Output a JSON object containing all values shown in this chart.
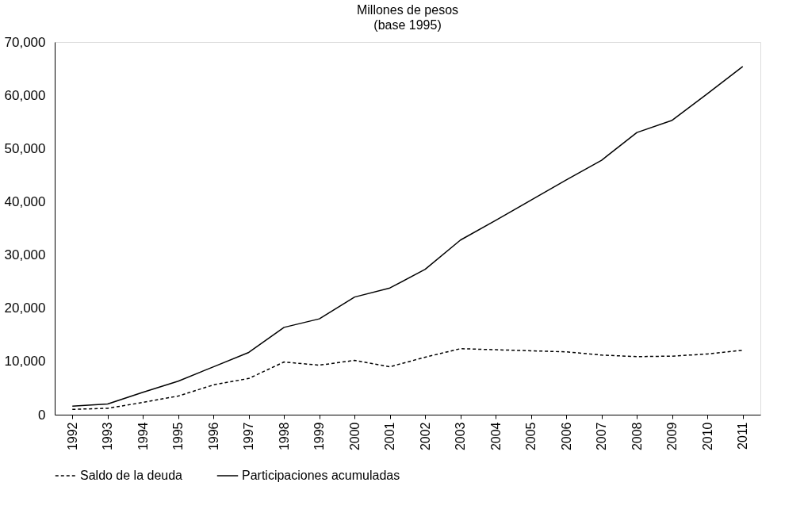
{
  "chart_data": {
    "type": "line",
    "title": "Millones de pesos",
    "subtitle": "(base 1995)",
    "categories": [
      "1992",
      "1993",
      "1994",
      "1995",
      "1996",
      "1997",
      "1998",
      "1999",
      "2000",
      "2001",
      "2002",
      "2003",
      "2004",
      "2005",
      "2006",
      "2007",
      "2008",
      "2009",
      "2010",
      "2011"
    ],
    "series": [
      {
        "name": "Saldo de la deuda",
        "color": "#000000",
        "line_style": "dashed",
        "values": [
          1000,
          1200,
          2300,
          3500,
          5600,
          6800,
          9900,
          9300,
          10200,
          9000,
          10800,
          12400,
          12200,
          12000,
          11800,
          11200,
          10900,
          11000,
          11400,
          12100
        ]
      },
      {
        "name": "Participaciones acumuladas",
        "color": "#000000",
        "line_style": "solid",
        "values": [
          1600,
          2000,
          4200,
          6300,
          9000,
          11700,
          16400,
          18000,
          22100,
          23800,
          27300,
          32800,
          36500,
          40300,
          44100,
          47800,
          53000,
          55300,
          60300,
          65400
        ]
      }
    ],
    "ylim": [
      0,
      70000
    ],
    "yticks": [
      0,
      {
        "value": 10000,
        "label": "10,000"
      },
      {
        "value": 20000,
        "label": "20,000"
      },
      {
        "value": 30000,
        "label": "30,000"
      },
      {
        "value": 40000,
        "label": "40,000"
      },
      {
        "value": 50000,
        "label": "50,000"
      },
      {
        "value": 60000,
        "label": "60,000"
      },
      {
        "value": 70000,
        "label": "70,000"
      }
    ],
    "grid": false,
    "legend": "bottom",
    "marker": "none"
  }
}
